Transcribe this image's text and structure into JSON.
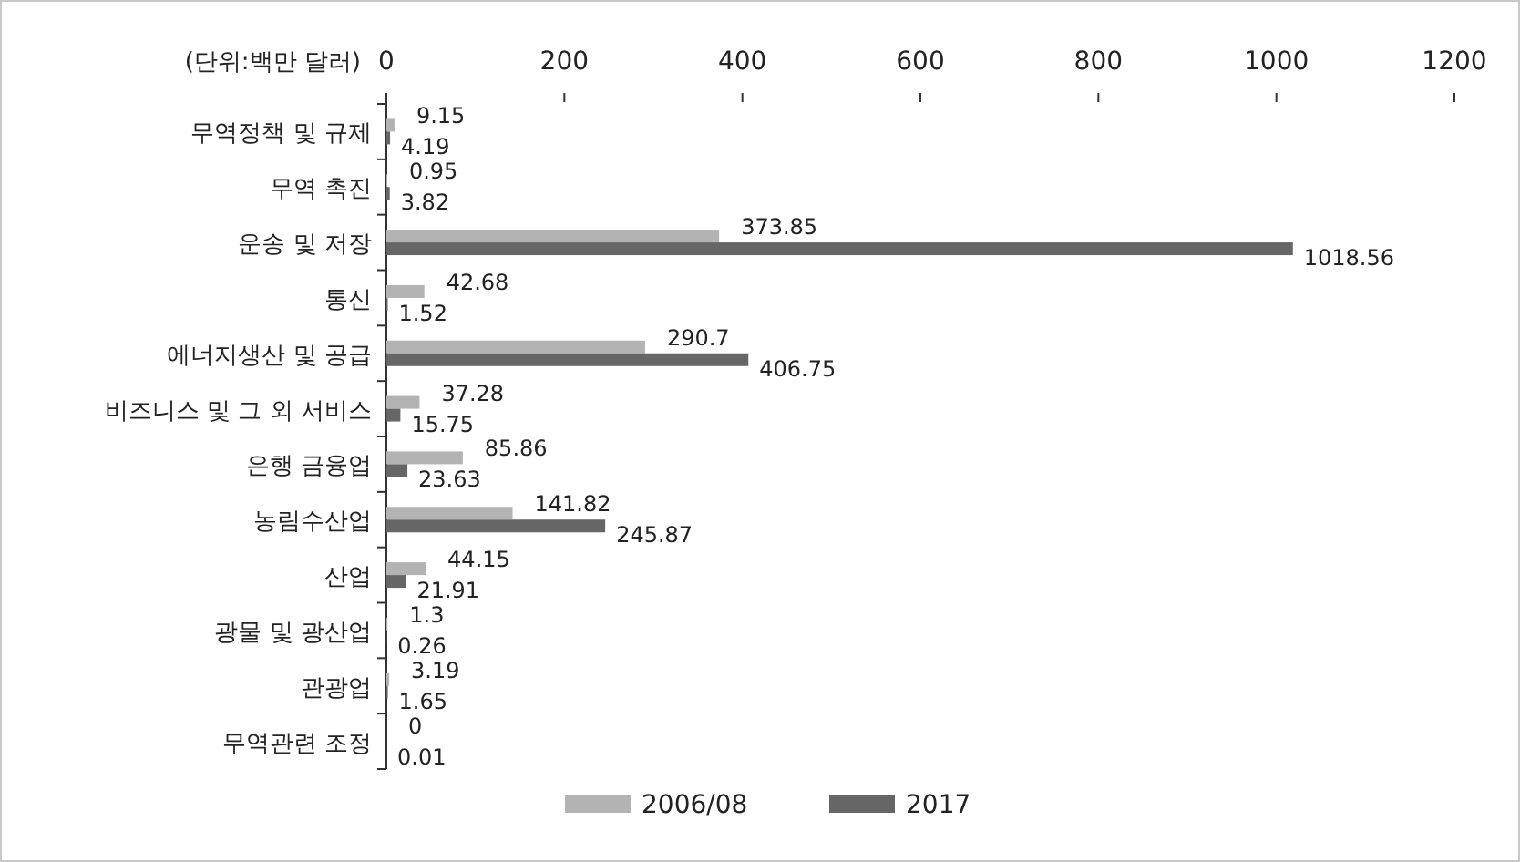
{
  "chart_data": {
    "type": "bar",
    "orientation": "horizontal",
    "xlabel": "(단위:백만 달러)",
    "categories": [
      "무역정책 및 규제",
      "무역 촉진",
      "운송 및 저장",
      "통신",
      "에너지생산 및 공급",
      "비즈니스 및 그 외 서비스",
      "은행 금융업",
      "농림수산업",
      "산업",
      "광물 및 광산업",
      "관광업",
      "무역관련 조정"
    ],
    "series": [
      {
        "name": "2006/08",
        "color": "#b3b3b3",
        "values": [
          9.15,
          0.95,
          373.85,
          42.68,
          290.7,
          37.28,
          85.86,
          141.82,
          44.15,
          1.3,
          3.19,
          0
        ]
      },
      {
        "name": "2017",
        "color": "#666666",
        "values": [
          4.19,
          3.82,
          1018.56,
          1.52,
          406.75,
          15.75,
          23.63,
          245.87,
          21.91,
          0.26,
          1.65,
          0.01
        ]
      }
    ],
    "xlim": [
      0,
      1200
    ],
    "xticks": [
      0,
      200,
      400,
      600,
      800,
      1000,
      1200
    ],
    "data_labels": true,
    "legend": "bottom",
    "grid": false
  }
}
